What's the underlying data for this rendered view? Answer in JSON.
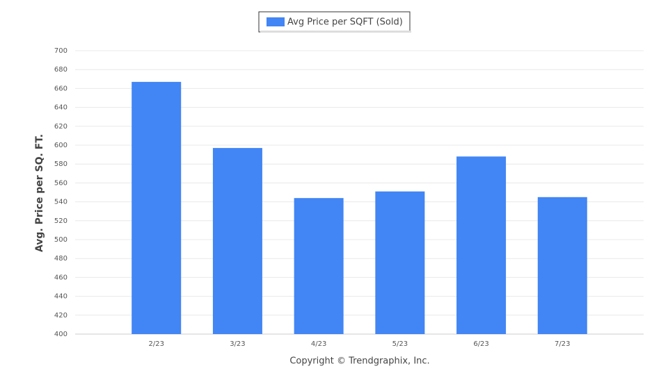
{
  "chart_data": {
    "type": "bar",
    "legend": "Avg Price per SQFT (Sold)",
    "y_label": "Avg. Price per SQ. FT.",
    "credit": "Copyright © Trendgraphix, Inc.",
    "categories": [
      "2/23",
      "3/23",
      "4/23",
      "5/23",
      "6/23",
      "7/23"
    ],
    "values": [
      667,
      597,
      544,
      551,
      588,
      545
    ],
    "color": "#4285f4",
    "ylim": [
      400,
      700
    ],
    "yticks": [
      400,
      420,
      440,
      460,
      480,
      500,
      520,
      540,
      560,
      580,
      600,
      620,
      640,
      660,
      680,
      700
    ],
    "grid": true
  }
}
